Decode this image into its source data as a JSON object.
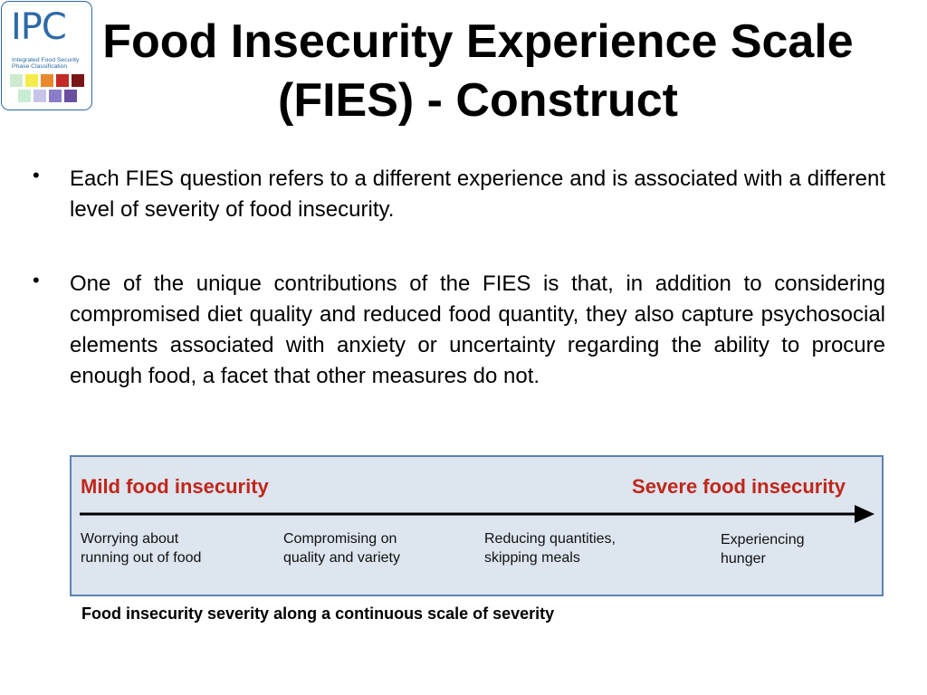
{
  "logo": {
    "text": "IPC",
    "subtitle_line1": "Integrated Food Security",
    "subtitle_line2": "Phase Classification",
    "colors_row1": [
      "#cdeacf",
      "#f3ec4b",
      "#e9892d",
      "#c22a23",
      "#7a1315"
    ],
    "colors_row2": [
      "#c9ecd4",
      "#c6c4e8",
      "#8b7cc8",
      "#6a4fa0"
    ]
  },
  "title": {
    "line1": "Food Insecurity Experience Scale",
    "line2": "(FIES) - Construct"
  },
  "bullets": [
    {
      "marker": "•",
      "text": "Each FIES question refers to a different experience and is associated with a different level of severity of food insecurity."
    },
    {
      "marker": "•",
      "text": "One of the unique contributions of the FIES is that, in addition to considering compromised diet quality and reduced food quantity, they also capture psychosocial elements associated with anxiety or uncertainty regarding the ability to procure enough food, a facet that other measures do not."
    }
  ],
  "scale": {
    "mild_label": "Mild food insecurity",
    "severe_label": "Severe food insecurity",
    "stages": [
      {
        "line1": "Worrying about",
        "line2": "running out of food"
      },
      {
        "line1": "Compromising on",
        "line2": "quality and variety"
      },
      {
        "line1": "Reducing quantities,",
        "line2": "skipping meals"
      },
      {
        "line1": "Experiencing",
        "line2": "hunger"
      }
    ],
    "label_color": "#c0271a",
    "box_color": "#dde5ef",
    "border_color": "#5b82b5"
  },
  "caption": "Food insecurity severity along a continuous scale of severity"
}
